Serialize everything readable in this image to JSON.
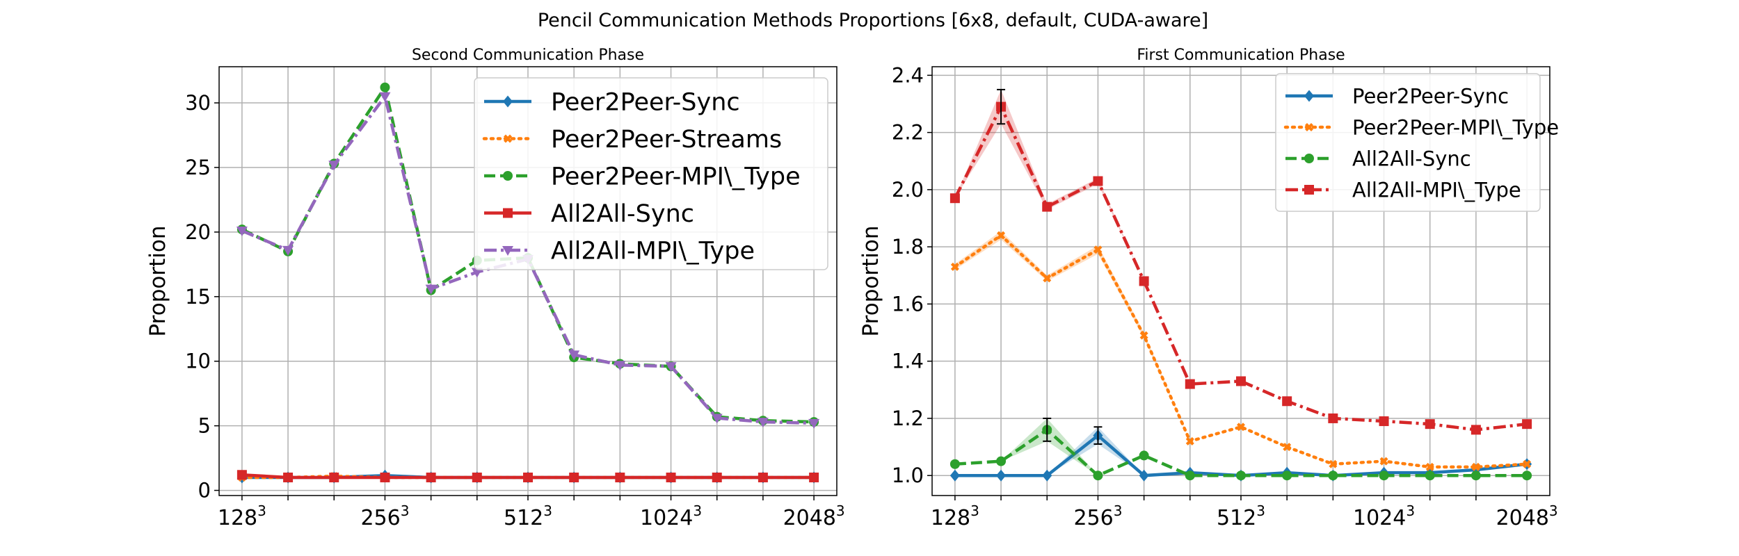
{
  "figure": {
    "suptitle": "Pencil Communication Methods Proportions [6x8, default, CUDA-aware]"
  },
  "chart_data": [
    {
      "type": "line",
      "title": "Second Communication Phase",
      "xlabel": "",
      "ylabel": "Proportion",
      "x": [
        128,
        160,
        200,
        256,
        320,
        400,
        512,
        640,
        800,
        1024,
        1280,
        1600,
        2048
      ],
      "xticks": [
        {
          "x": 128,
          "base": "128",
          "exp": "3"
        },
        {
          "x": 256,
          "base": "256",
          "exp": "3"
        },
        {
          "x": 512,
          "base": "512",
          "exp": "3"
        },
        {
          "x": 1024,
          "base": "1024",
          "exp": "3"
        },
        {
          "x": 2048,
          "base": "2048",
          "exp": "3"
        }
      ],
      "xscale": "log2",
      "ylim": [
        -0.4,
        32.8
      ],
      "yticks": [
        0,
        5,
        10,
        15,
        20,
        25,
        30
      ],
      "grid": true,
      "legend_position": "top-right",
      "series": [
        {
          "name": "Peer2Peer-Sync",
          "color": "#1f77b4",
          "dash": "solid",
          "marker": "diamond",
          "values": [
            1.0,
            1.0,
            1.0,
            1.15,
            1.0,
            1.0,
            1.0,
            1.0,
            1.0,
            1.0,
            1.0,
            1.0,
            1.0
          ]
        },
        {
          "name": "Peer2Peer-Streams",
          "color": "#ff7f0e",
          "dash": "dotted",
          "marker": "x",
          "values": [
            1.0,
            1.0,
            1.1,
            1.0,
            1.0,
            1.0,
            1.0,
            1.0,
            1.0,
            1.0,
            1.0,
            1.0,
            1.0
          ]
        },
        {
          "name": "Peer2Peer-MPI\\_Type",
          "color": "#2ca02c",
          "dash": "dashed",
          "marker": "circle",
          "values": [
            20.2,
            18.5,
            25.3,
            31.2,
            15.5,
            17.8,
            18.0,
            10.3,
            9.8,
            9.6,
            5.7,
            5.4,
            5.3
          ]
        },
        {
          "name": "All2All-Sync",
          "color": "#d62728",
          "dash": "solid",
          "marker": "square",
          "values": [
            1.2,
            1.0,
            1.0,
            1.0,
            1.0,
            1.0,
            1.0,
            1.0,
            1.0,
            1.0,
            1.0,
            1.0,
            1.0
          ]
        },
        {
          "name": "All2All-MPI\\_Type",
          "color": "#9467bd",
          "dash": "dashdot",
          "marker": "triangle-down",
          "values": [
            20.1,
            18.6,
            25.2,
            30.5,
            15.6,
            16.9,
            17.9,
            10.5,
            9.7,
            9.6,
            5.6,
            5.3,
            5.2
          ]
        }
      ]
    },
    {
      "type": "line",
      "title": "First Communication Phase",
      "xlabel": "",
      "ylabel": "Proportion",
      "x": [
        128,
        160,
        200,
        256,
        320,
        400,
        512,
        640,
        800,
        1024,
        1280,
        1600,
        2048
      ],
      "xticks": [
        {
          "x": 128,
          "base": "128",
          "exp": "3"
        },
        {
          "x": 256,
          "base": "256",
          "exp": "3"
        },
        {
          "x": 512,
          "base": "512",
          "exp": "3"
        },
        {
          "x": 1024,
          "base": "1024",
          "exp": "3"
        },
        {
          "x": 2048,
          "base": "2048",
          "exp": "3"
        }
      ],
      "xscale": "log2",
      "ylim": [
        0.93,
        2.43
      ],
      "yticks": [
        1.0,
        1.2,
        1.4,
        1.6,
        1.8,
        2.0,
        2.2,
        2.4
      ],
      "grid": true,
      "legend_position": "top-right",
      "series": [
        {
          "name": "Peer2Peer-Sync",
          "color": "#1f77b4",
          "dash": "solid",
          "marker": "diamond",
          "values": [
            1.0,
            1.0,
            1.0,
            1.14,
            1.0,
            1.01,
            1.0,
            1.01,
            1.0,
            1.01,
            1.01,
            1.02,
            1.04
          ],
          "error": [
            0,
            0,
            0,
            0.03,
            0,
            0,
            0,
            0,
            0,
            0,
            0,
            0,
            0
          ]
        },
        {
          "name": "Peer2Peer-MPI\\_Type",
          "color": "#ff7f0e",
          "dash": "dotted",
          "marker": "x",
          "values": [
            1.73,
            1.84,
            1.69,
            1.79,
            1.49,
            1.12,
            1.17,
            1.1,
            1.04,
            1.05,
            1.03,
            1.03,
            1.04
          ],
          "error": [
            0.01,
            0.015,
            0.01,
            0.015,
            0.01,
            0,
            0,
            0,
            0,
            0,
            0,
            0,
            0
          ]
        },
        {
          "name": "All2All-Sync",
          "color": "#2ca02c",
          "dash": "dashed",
          "marker": "circle",
          "values": [
            1.04,
            1.05,
            1.16,
            1.0,
            1.07,
            1.0,
            1.0,
            1.0,
            1.0,
            1.0,
            1.0,
            1.0,
            1.0
          ],
          "error": [
            0,
            0,
            0.04,
            0,
            0,
            0,
            0,
            0,
            0,
            0,
            0,
            0,
            0
          ]
        },
        {
          "name": "All2All-MPI\\_Type",
          "color": "#d62728",
          "dash": "dashdot",
          "marker": "square",
          "values": [
            1.97,
            2.29,
            1.94,
            2.03,
            1.68,
            1.32,
            1.33,
            1.26,
            1.2,
            1.19,
            1.18,
            1.16,
            1.18
          ],
          "error": [
            0,
            0.06,
            0.01,
            0.01,
            0,
            0,
            0,
            0,
            0,
            0,
            0,
            0,
            0
          ]
        }
      ]
    }
  ]
}
